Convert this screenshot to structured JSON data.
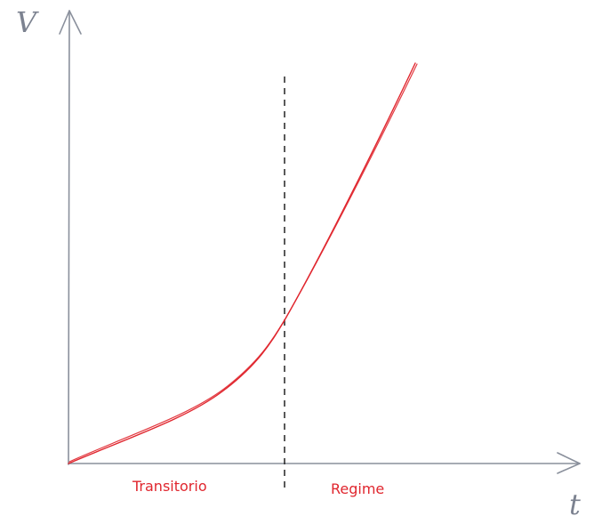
{
  "diagram": {
    "y_axis_label": "V",
    "x_axis_label": "t",
    "regions": [
      {
        "label": "Transitorio"
      },
      {
        "label": "Regime"
      }
    ],
    "colors": {
      "axis": "#8a909c",
      "curve": "#e0262e",
      "divider": "#222222",
      "labels": "#e0262e"
    }
  }
}
